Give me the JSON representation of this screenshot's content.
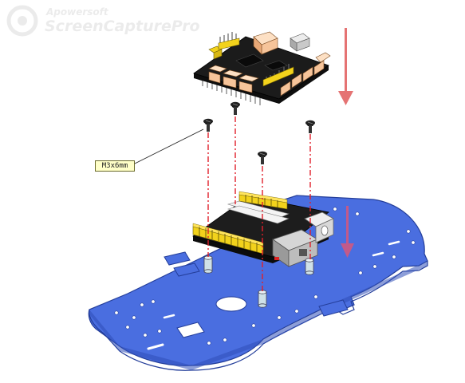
{
  "watermark": {
    "line1": "Apowersoft",
    "line2": "ScreenCapturePro"
  },
  "callout": {
    "label": "M3x6mm"
  },
  "colors": {
    "chassis": "#4a6ee0",
    "arrow": "#e57373",
    "pcb": "#1d1d1d",
    "header_pin": "#f2d21c",
    "terminal": "#f6c49a",
    "guide_line": "#e0202a"
  },
  "icons": {
    "down_arrow_top": "down-arrow-icon",
    "down_arrow_bottom": "down-arrow-icon",
    "screw": "screw-icon",
    "standoff": "standoff-icon"
  }
}
